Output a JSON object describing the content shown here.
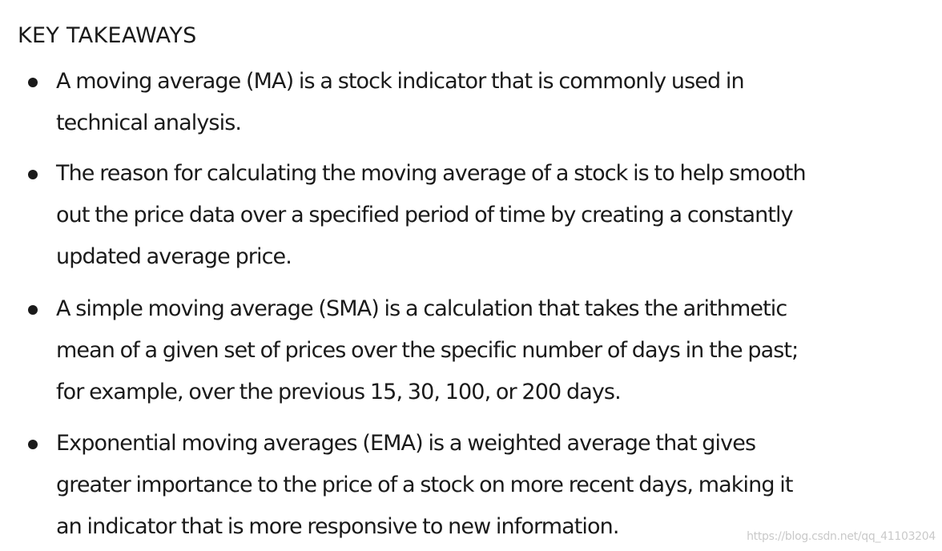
{
  "heading": "KEY TAKEAWAYS",
  "items": [
    {
      "lines": [
        "A moving average (MA) is a stock indicator that is commonly used in",
        "technical analysis."
      ]
    },
    {
      "lines": [
        "The reason for calculating the moving average of a stock is to help smooth",
        "out the price data over a specified period of time by creating a constantly",
        "updated average price."
      ]
    },
    {
      "lines": [
        "A simple moving average (SMA) is a calculation that takes the arithmetic",
        "mean of a given set of prices over the specific number of days in the past;",
        "for example, over the previous 15, 30, 100, or 200 days."
      ]
    },
    {
      "lines": [
        "Exponential moving averages (EMA) is a weighted average that gives",
        "greater importance to the price of a stock on more recent days, making it",
        "an indicator that is more responsive to new information."
      ]
    }
  ],
  "watermark": "https://blog.csdn.net/qq_41103204"
}
